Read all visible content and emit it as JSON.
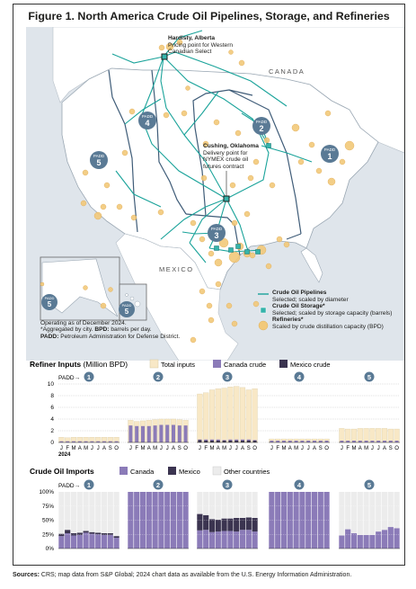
{
  "title": "Figure 1. North America Crude Oil Pipelines, Storage, and Refineries",
  "map": {
    "country_labels": [
      "CANADA",
      "MEXICO"
    ],
    "hardisty": {
      "name": "Hardisty, Alberta",
      "desc1": "Pricing point for Western",
      "desc2": "Canadian Select"
    },
    "cushing": {
      "name": "Cushing, Oklahoma",
      "desc1": "Delivery point for",
      "desc2": "NYMEX crude oil",
      "desc3": "futures contract"
    },
    "padd_prefix": "PADD",
    "padds": [
      "1",
      "2",
      "3",
      "4",
      "5"
    ],
    "notes": {
      "line1": "Operating as of December 2024.",
      "line2": "*Aggregated by city. ",
      "line2_bold": "BPD:",
      "line2_rest": " barrels per day.",
      "line3_bold": "PADD:",
      "line3_rest": " Petroleum Administration for Defense District."
    },
    "legend": {
      "pipelines": "Crude Oil Pipelines",
      "pipelines_sub": "Selected; scaled by diameter",
      "storage": "Crude Oil Storage*",
      "storage_sub": "Selected; scaled by storage capacity (barrels)",
      "refineries": "Refineries*",
      "refineries_sub": "Scaled by crude distillation capacity (BPD)"
    },
    "colors": {
      "pipeline": "#1aa39a",
      "refinery": "#f2c97a",
      "storage": "#35b4ab",
      "padd": "#5a7a95",
      "land": "#ffffff",
      "water": "#dfe5eb"
    }
  },
  "inputs_chart": {
    "title_bold": "Refiner Inputs",
    "title_rest": " (Million BPD)",
    "legend": [
      "Total inputs",
      "Canada crude",
      "Mexico crude"
    ],
    "padd_arrow": "PADD→",
    "y_ticks": [
      "0",
      "2",
      "4",
      "6",
      "8",
      "10"
    ]
  },
  "imports_chart": {
    "title": "Crude Oil Imports",
    "legend": [
      "Canada",
      "Mexico",
      "Other countries"
    ],
    "padd_arrow": "PADD→",
    "y_ticks": [
      "0%",
      "25%",
      "50%",
      "75%",
      "100%"
    ]
  },
  "month_letters": [
    "J",
    "F",
    "M",
    "A",
    "M",
    "J",
    "J",
    "A",
    "S",
    "O"
  ],
  "year_label": "2024",
  "colors": {
    "total": "#f8e8c6",
    "canada": "#8b7bb8",
    "mexico": "#3b3450",
    "other": "#ececec",
    "label_circle": "#5a7a95"
  },
  "chart_data": [
    {
      "type": "bar",
      "title": "Refiner Inputs (Million BPD)",
      "categories": [
        "J",
        "F",
        "M",
        "A",
        "M",
        "J",
        "J",
        "A",
        "S",
        "O"
      ],
      "ylim": [
        0,
        10
      ],
      "panels": [
        {
          "padd": "1",
          "series": [
            {
              "name": "Total inputs",
              "values": [
                0.9,
                0.8,
                0.9,
                0.9,
                0.9,
                0.9,
                0.9,
                0.9,
                0.9,
                0.9
              ]
            },
            {
              "name": "Canada crude",
              "values": [
                0.2,
                0.2,
                0.2,
                0.2,
                0.2,
                0.2,
                0.2,
                0.2,
                0.2,
                0.2
              ]
            },
            {
              "name": "Mexico crude",
              "values": [
                0,
                0,
                0,
                0,
                0,
                0,
                0,
                0,
                0,
                0
              ]
            }
          ]
        },
        {
          "padd": "2",
          "series": [
            {
              "name": "Total inputs",
              "values": [
                3.8,
                3.6,
                3.7,
                3.8,
                3.9,
                4.0,
                4.0,
                4.0,
                3.9,
                3.8
              ]
            },
            {
              "name": "Canada crude",
              "values": [
                2.9,
                2.8,
                2.8,
                2.8,
                2.9,
                3.0,
                3.0,
                3.0,
                2.9,
                2.9
              ]
            },
            {
              "name": "Mexico crude",
              "values": [
                0,
                0,
                0,
                0,
                0,
                0,
                0,
                0,
                0,
                0
              ]
            }
          ]
        },
        {
          "padd": "3",
          "series": [
            {
              "name": "Total inputs",
              "values": [
                8.3,
                8.5,
                9.0,
                9.2,
                9.3,
                9.5,
                9.6,
                9.4,
                9.0,
                9.2
              ]
            },
            {
              "name": "Canada crude",
              "values": [
                0.5,
                0.5,
                0.5,
                0.5,
                0.4,
                0.5,
                0.5,
                0.5,
                0.5,
                0.4
              ]
            },
            {
              "name": "Mexico crude",
              "values": [
                0.4,
                0.3,
                0.3,
                0.3,
                0.3,
                0.3,
                0.3,
                0.3,
                0.3,
                0.3
              ]
            }
          ]
        },
        {
          "padd": "4",
          "series": [
            {
              "name": "Total inputs",
              "values": [
                0.6,
                0.6,
                0.6,
                0.6,
                0.6,
                0.6,
                0.6,
                0.6,
                0.6,
                0.6
              ]
            },
            {
              "name": "Canada crude",
              "values": [
                0.3,
                0.3,
                0.3,
                0.3,
                0.3,
                0.3,
                0.3,
                0.3,
                0.3,
                0.3
              ]
            },
            {
              "name": "Mexico crude",
              "values": [
                0,
                0,
                0,
                0,
                0,
                0,
                0,
                0,
                0,
                0
              ]
            }
          ]
        },
        {
          "padd": "5",
          "series": [
            {
              "name": "Total inputs",
              "values": [
                2.4,
                2.3,
                2.3,
                2.4,
                2.4,
                2.4,
                2.4,
                2.4,
                2.3,
                2.3
              ]
            },
            {
              "name": "Canada crude",
              "values": [
                0.3,
                0.3,
                0.3,
                0.3,
                0.3,
                0.3,
                0.3,
                0.3,
                0.3,
                0.3
              ]
            },
            {
              "name": "Mexico crude",
              "values": [
                0,
                0,
                0,
                0,
                0,
                0,
                0,
                0,
                0,
                0
              ]
            }
          ]
        }
      ]
    },
    {
      "type": "bar",
      "title": "Crude Oil Imports",
      "categories": [
        "J",
        "F",
        "M",
        "A",
        "M",
        "J",
        "J",
        "A",
        "S",
        "O"
      ],
      "ylim": [
        0,
        100
      ],
      "panels": [
        {
          "padd": "1",
          "series": [
            {
              "name": "Canada",
              "values": [
                22,
                27,
                23,
                24,
                28,
                26,
                25,
                24,
                24,
                19
              ]
            },
            {
              "name": "Mexico",
              "values": [
                4,
                6,
                4,
                4,
                3,
                3,
                3,
                3,
                3,
                3
              ]
            },
            {
              "name": "Other countries",
              "values": [
                74,
                67,
                73,
                72,
                69,
                71,
                72,
                73,
                73,
                78
              ]
            }
          ]
        },
        {
          "padd": "2",
          "series": [
            {
              "name": "Canada",
              "values": [
                100,
                100,
                100,
                100,
                100,
                100,
                100,
                100,
                100,
                100
              ]
            },
            {
              "name": "Mexico",
              "values": [
                0,
                0,
                0,
                0,
                0,
                0,
                0,
                0,
                0,
                0
              ]
            },
            {
              "name": "Other countries",
              "values": [
                0,
                0,
                0,
                0,
                0,
                0,
                0,
                0,
                0,
                0
              ]
            }
          ]
        },
        {
          "padd": "3",
          "series": [
            {
              "name": "Canada",
              "values": [
                32,
                33,
                29,
                30,
                31,
                31,
                30,
                33,
                33,
                30
              ]
            },
            {
              "name": "Mexico",
              "values": [
                29,
                26,
                23,
                21,
                22,
                22,
                24,
                21,
                22,
                24
              ]
            },
            {
              "name": "Other countries",
              "values": [
                39,
                41,
                48,
                49,
                47,
                47,
                46,
                46,
                45,
                46
              ]
            }
          ]
        },
        {
          "padd": "4",
          "series": [
            {
              "name": "Canada",
              "values": [
                100,
                100,
                100,
                100,
                100,
                100,
                100,
                100,
                100,
                100
              ]
            },
            {
              "name": "Mexico",
              "values": [
                0,
                0,
                0,
                0,
                0,
                0,
                0,
                0,
                0,
                0
              ]
            },
            {
              "name": "Other countries",
              "values": [
                0,
                0,
                0,
                0,
                0,
                0,
                0,
                0,
                0,
                0
              ]
            }
          ]
        },
        {
          "padd": "5",
          "series": [
            {
              "name": "Canada",
              "values": [
                23,
                34,
                27,
                24,
                24,
                24,
                30,
                33,
                38,
                36
              ]
            },
            {
              "name": "Mexico",
              "values": [
                0,
                0,
                0,
                0,
                0,
                0,
                0,
                0,
                0,
                0
              ]
            },
            {
              "name": "Other countries",
              "values": [
                77,
                66,
                73,
                76,
                76,
                76,
                70,
                67,
                62,
                64
              ]
            }
          ]
        }
      ]
    }
  ],
  "sources": {
    "bold": "Sources:",
    "text": " CRS; map data from S&P Global; 2024 chart data as available from the U.S. Energy Information Administration."
  }
}
